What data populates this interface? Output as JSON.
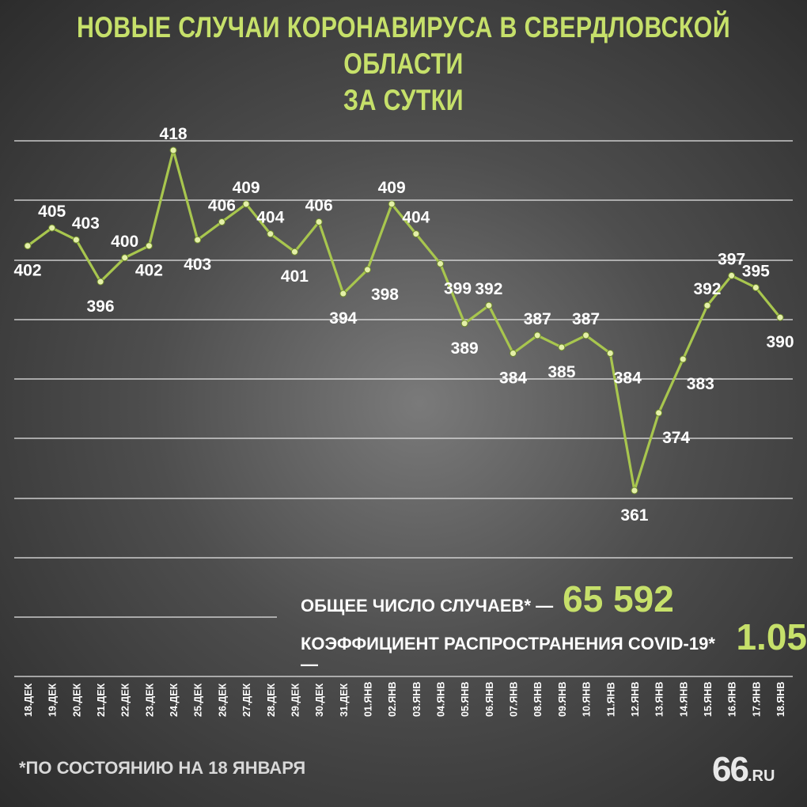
{
  "title_line1": "НОВЫЕ СЛУЧАИ КОРОНАВИРУСА В СВЕРДЛОВСКОЙ ОБЛАСТИ",
  "title_line2": "ЗА СУТКИ",
  "summary": {
    "total_label": "ОБЩЕЕ ЧИСЛО СЛУЧАЕВ* —",
    "total_value": "65 592",
    "coef_label": "КОЭФФИЦИЕНТ РАСПРОСТРАНЕНИЯ COVID-19* —",
    "coef_value": "1.05"
  },
  "footnote": "*ПО СОСТОЯНИЮ НА 18 ЯНВАРЯ",
  "logo": {
    "main": "66",
    "suffix": ".RU"
  },
  "colors": {
    "accent": "#c6e06a",
    "line": "#a8c64e",
    "point": "#e4f0a8",
    "text": "#ffffff",
    "grid": "#e6e6e6"
  },
  "chart_data": {
    "type": "line",
    "title": "НОВЫЕ СЛУЧАИ КОРОНАВИРУСА В СВЕРДЛОВСКОЙ ОБЛАСТИ ЗА СУТКИ",
    "xlabel": "",
    "ylabel": "",
    "grid": true,
    "ylim": [
      340,
      428
    ],
    "categories": [
      "18.ДЕК",
      "19.ДЕК",
      "20.ДЕК",
      "21.ДЕК",
      "22.ДЕК",
      "23.ДЕК",
      "24.ДЕК",
      "25.ДЕК",
      "26.ДЕК",
      "27.ДЕК",
      "28.ДЕК",
      "29.ДЕК",
      "30.ДЕК",
      "31.ДЕК",
      "01.ЯНВ",
      "02.ЯНВ",
      "03.ЯНВ",
      "04.ЯНВ",
      "05.ЯНВ",
      "06.ЯНВ",
      "07.ЯНВ",
      "08.ЯНВ",
      "09.ЯНВ",
      "10.ЯНВ",
      "11.ЯНВ",
      "12.ЯНВ",
      "13.ЯНВ",
      "14.ЯНВ",
      "15.ЯНВ",
      "16.ЯНВ",
      "17.ЯНВ",
      "18.ЯНВ"
    ],
    "values": [
      402,
      405,
      403,
      396,
      400,
      402,
      418,
      403,
      406,
      409,
      404,
      401,
      406,
      394,
      398,
      409,
      404,
      399,
      389,
      392,
      384,
      387,
      385,
      387,
      384,
      361,
      374,
      383,
      392,
      397,
      395,
      390
    ],
    "labels_above": [
      false,
      true,
      true,
      false,
      true,
      false,
      true,
      false,
      true,
      true,
      true,
      false,
      true,
      false,
      false,
      true,
      true,
      false,
      false,
      true,
      false,
      true,
      false,
      true,
      false,
      false,
      false,
      false,
      true,
      true,
      true,
      false
    ],
    "label_dx": [
      0,
      0,
      12,
      0,
      0,
      0,
      0,
      0,
      0,
      0,
      0,
      0,
      0,
      0,
      22,
      0,
      0,
      22,
      0,
      0,
      0,
      0,
      0,
      0,
      22,
      0,
      22,
      22,
      0,
      0,
      0,
      0
    ]
  }
}
